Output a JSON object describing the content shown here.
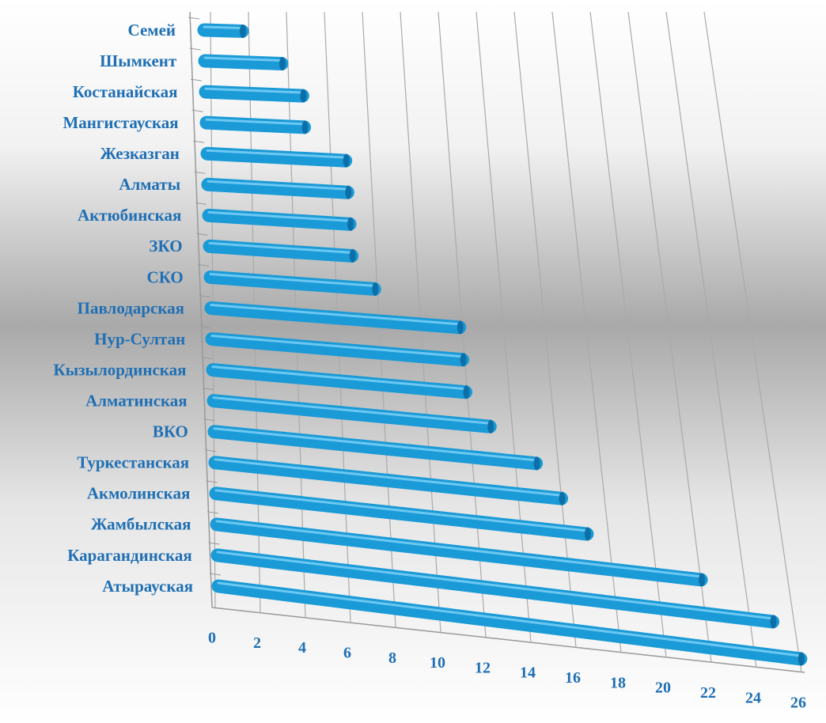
{
  "chart_data": {
    "type": "bar",
    "orientation": "horizontal",
    "color": "#1a9ad6",
    "categories": [
      "Семей",
      "Шымкент",
      "Костанайская",
      "Мангистауская",
      "Жезказган",
      "Алматы",
      "Актюбинская",
      "ЗКО",
      "СКО",
      "Павлодарская",
      "Нур-Султан",
      "Кызылординская",
      "Алматинская",
      "ВКО",
      "Туркестанская",
      "Акмолинская",
      "Жамбылская",
      "Карагандинская",
      "Атырауская"
    ],
    "values": [
      2,
      4,
      5,
      5,
      7,
      7,
      7,
      7,
      8,
      12,
      12,
      12,
      13,
      15,
      16,
      17,
      22,
      25,
      26
    ],
    "xlim": [
      0,
      26
    ],
    "xticks": [
      0,
      2,
      4,
      6,
      8,
      10,
      12,
      14,
      16,
      18,
      20,
      22,
      24,
      26
    ],
    "grid": true
  }
}
